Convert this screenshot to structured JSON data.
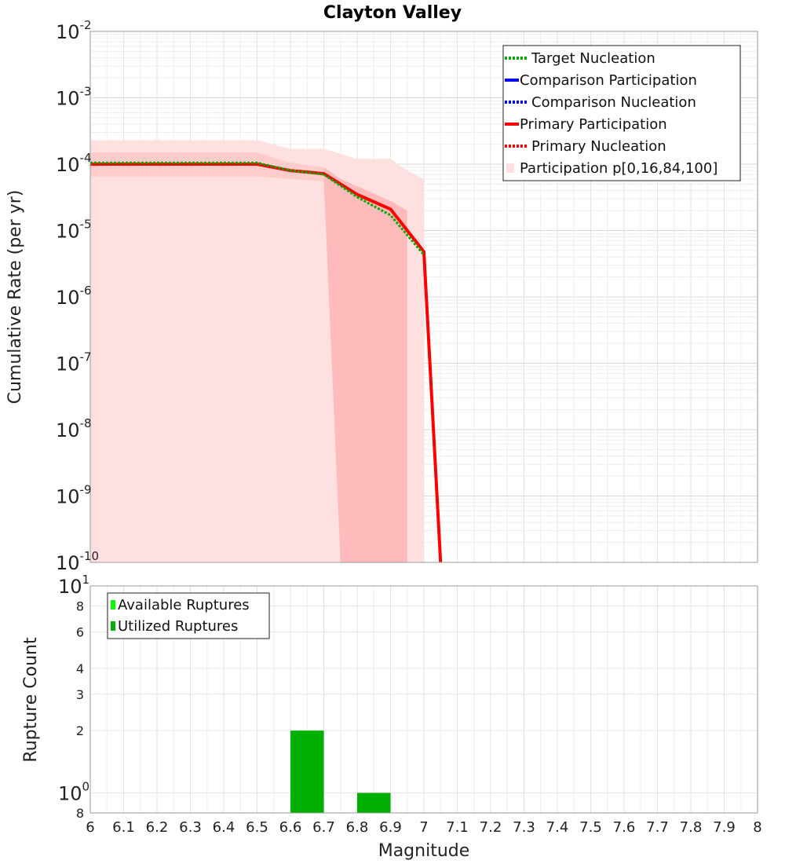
{
  "chart_data": [
    {
      "type": "line",
      "title": "Clayton Valley",
      "xlabel": "Magnitude",
      "ylabel": "Cumulative Rate (per yr)",
      "xlim": [
        6,
        8
      ],
      "ylim": [
        1e-10,
        0.01
      ],
      "yscale": "log",
      "grid": true,
      "legend_position": "top-right",
      "y_ticks": [
        {
          "base": "10",
          "exp": "-2",
          "value": 0.01
        },
        {
          "base": "10",
          "exp": "-3",
          "value": 0.001
        },
        {
          "base": "10",
          "exp": "-4",
          "value": 0.0001
        },
        {
          "base": "10",
          "exp": "-5",
          "value": 1e-05
        },
        {
          "base": "10",
          "exp": "-6",
          "value": 1e-06
        },
        {
          "base": "10",
          "exp": "-7",
          "value": 1e-07
        },
        {
          "base": "10",
          "exp": "-8",
          "value": 1e-08
        },
        {
          "base": "10",
          "exp": "-9",
          "value": 1e-09
        },
        {
          "base": "10",
          "exp": "-10",
          "value": 1e-10
        }
      ],
      "bands": [
        {
          "name": "Participation p[0,16,84,100]",
          "kind": "outer",
          "color": "#ffe0e0",
          "x": [
            6.0,
            6.5,
            6.6,
            6.7,
            6.8,
            6.9,
            6.95,
            7.0,
            7.0
          ],
          "upper": [
            0.00023,
            0.00023,
            0.00017,
            0.00017,
            0.00012,
            0.00012,
            8e-05,
            6e-05,
            1e-10
          ],
          "lower": [
            1e-10,
            1e-10,
            1e-10,
            1e-10,
            1e-10,
            1e-10,
            1e-10,
            1e-10,
            1e-10
          ]
        },
        {
          "name": "",
          "kind": "inner",
          "color": "#ffcccc",
          "x": [
            6.0,
            6.5,
            6.6,
            6.7,
            6.8,
            6.9
          ],
          "upper": [
            0.00015,
            0.00015,
            0.000105,
            9e-05,
            4e-05,
            2.8e-05
          ],
          "lower": [
            6.5e-05,
            6.5e-05,
            6e-05,
            5.5e-05,
            2e-05,
            1.3e-05
          ]
        },
        {
          "name": "",
          "kind": "inner-tail",
          "color": "#ffbbbb",
          "x": [
            6.7,
            6.75,
            6.9,
            6.95
          ],
          "upper": [
            9e-05,
            6e-05,
            2.8e-05,
            2e-05
          ],
          "lower": [
            5.5e-05,
            1e-10,
            1e-10,
            1e-10
          ]
        }
      ],
      "series": [
        {
          "name": "Target Nucleation",
          "color": "#00aa00",
          "style": "dotted",
          "x": [
            6.0,
            6.5,
            6.6,
            6.7,
            6.8,
            6.9,
            7.0
          ],
          "y": [
            0.000105,
            0.000105,
            8e-05,
            7e-05,
            3.2e-05,
            1.7e-05,
            4.3e-06
          ]
        },
        {
          "name": "Comparison Participation",
          "color": "#0000ff",
          "style": "solid",
          "x": [],
          "y": []
        },
        {
          "name": "Comparison Nucleation",
          "color": "#0000ff",
          "style": "dotted",
          "x": [],
          "y": []
        },
        {
          "name": "Primary Participation",
          "color": "#ff0000",
          "style": "solid",
          "x": [
            6.0,
            6.5,
            6.6,
            6.7,
            6.8,
            6.9,
            7.0,
            7.05
          ],
          "y": [
            0.0001,
            0.0001,
            8e-05,
            7.2e-05,
            3.5e-05,
            2.1e-05,
            4.8e-06,
            1e-10
          ]
        },
        {
          "name": "Primary Nucleation",
          "color": "#ff0000",
          "style": "dotted",
          "x": [
            6.0,
            6.5,
            6.6,
            6.7,
            6.8,
            6.9,
            7.0,
            7.05
          ],
          "y": [
            0.0001,
            0.0001,
            8e-05,
            7.2e-05,
            3.5e-05,
            2.1e-05,
            4.8e-06,
            1e-10
          ]
        }
      ]
    },
    {
      "type": "bar",
      "xlabel": "Magnitude",
      "ylabel": "Rupture Count",
      "xlim": [
        6,
        8
      ],
      "ylim": [
        0.8,
        10
      ],
      "yscale": "log",
      "grid": true,
      "legend_position": "top-left",
      "x_ticks": [
        "6",
        "6.1",
        "6.2",
        "6.3",
        "6.4",
        "6.5",
        "6.6",
        "6.7",
        "6.8",
        "6.9",
        "7",
        "7.1",
        "7.2",
        "7.3",
        "7.4",
        "7.5",
        "7.6",
        "7.7",
        "7.8",
        "7.9",
        "8"
      ],
      "y_ticks": [
        {
          "label": "10",
          "exp": "1",
          "value": 10,
          "major": true
        },
        {
          "label": "8",
          "exp": "",
          "value": 8,
          "major": false
        },
        {
          "label": "6",
          "exp": "",
          "value": 6,
          "major": false
        },
        {
          "label": "4",
          "exp": "",
          "value": 4,
          "major": false
        },
        {
          "label": "3",
          "exp": "",
          "value": 3,
          "major": false
        },
        {
          "label": "2",
          "exp": "",
          "value": 2,
          "major": false
        },
        {
          "label": "10",
          "exp": "0",
          "value": 1,
          "major": true
        },
        {
          "label": "8",
          "exp": "",
          "value": 0.8,
          "major": false
        }
      ],
      "series": [
        {
          "name": "Available Ruptures",
          "color": "#00ff00",
          "bars": []
        },
        {
          "name": "Utilized Ruptures",
          "color": "#00b000",
          "bars": [
            {
              "x0": 6.6,
              "x1": 6.7,
              "value": 2
            },
            {
              "x0": 6.8,
              "x1": 6.9,
              "value": 1
            }
          ]
        }
      ]
    }
  ]
}
